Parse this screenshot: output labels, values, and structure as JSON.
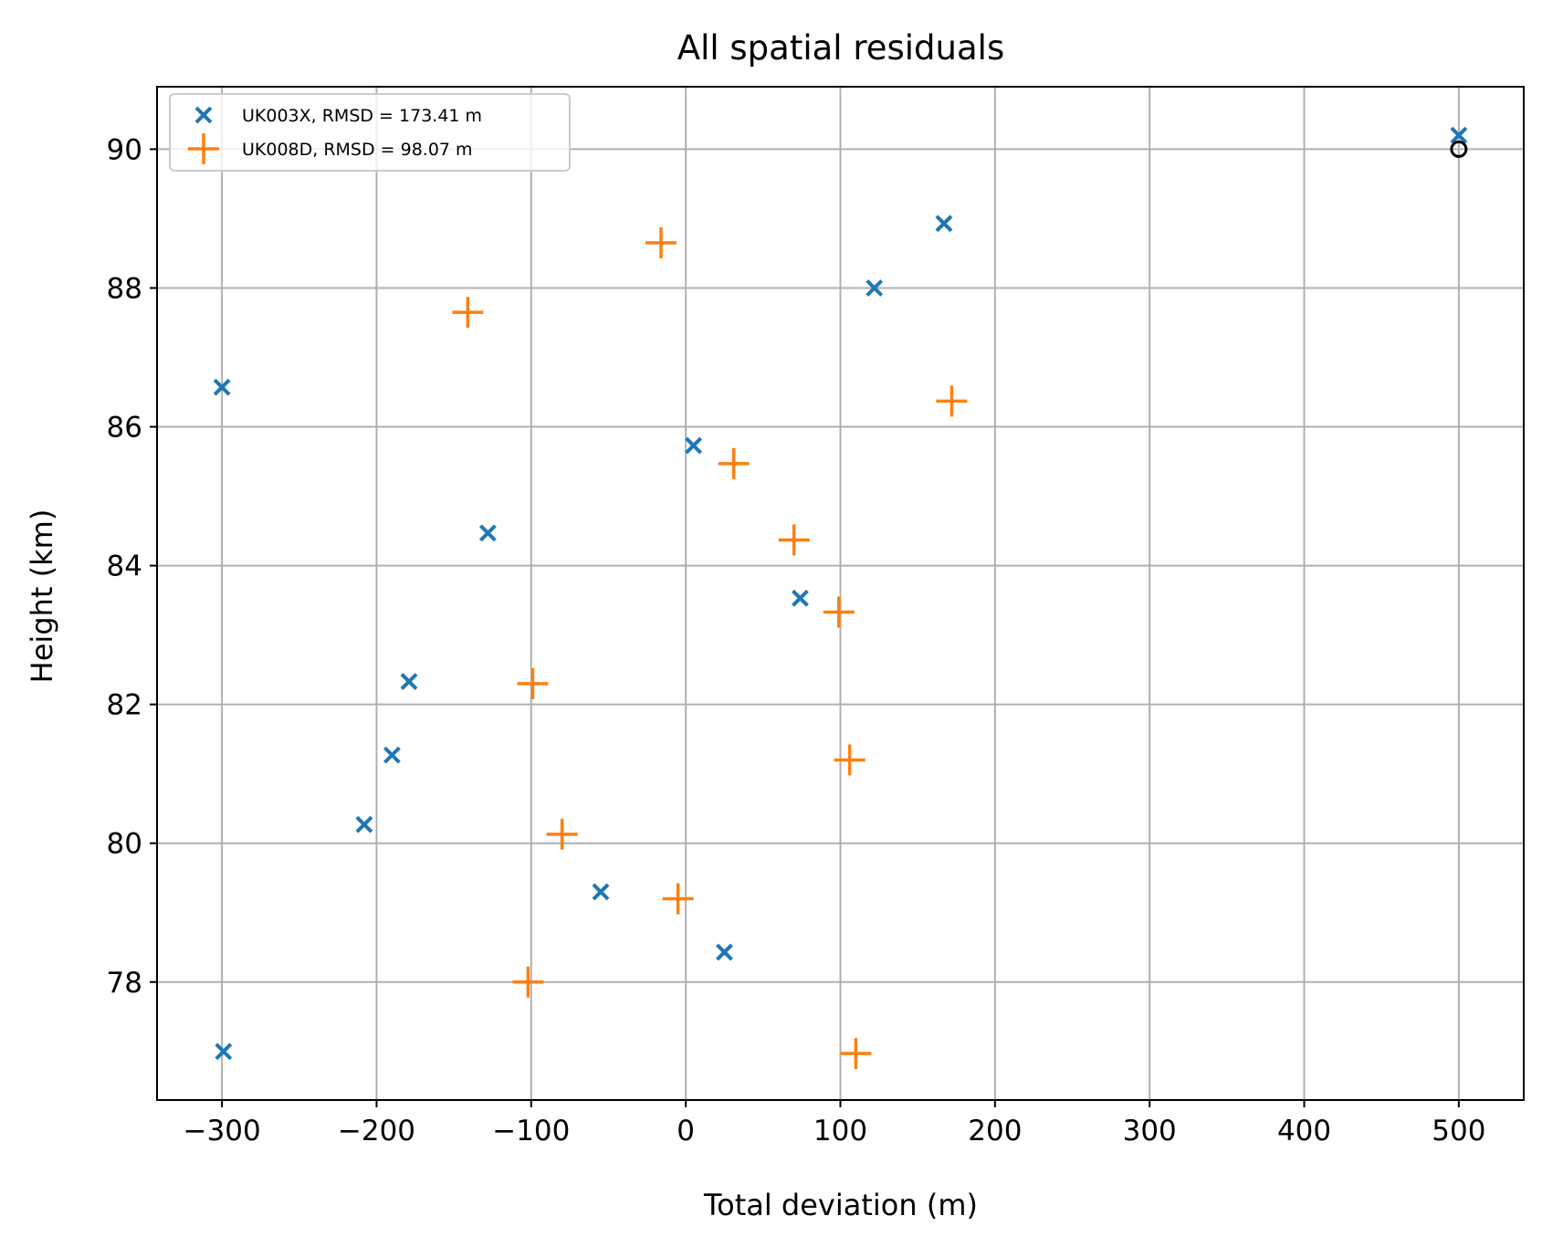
{
  "chart_data": {
    "type": "scatter",
    "title": "All spatial residuals",
    "xlabel": "Total deviation (m)",
    "ylabel": "Height (km)",
    "xlim": [
      -342,
      542
    ],
    "ylim": [
      76.3,
      90.9
    ],
    "xticks": [
      -300,
      -200,
      -100,
      0,
      100,
      200,
      300,
      400,
      500
    ],
    "xtick_labels": [
      "−300",
      "−200",
      "−100",
      "0",
      "100",
      "200",
      "300",
      "400",
      "500"
    ],
    "yticks": [
      78,
      80,
      82,
      84,
      86,
      88,
      90
    ],
    "ytick_labels": [
      "78",
      "80",
      "82",
      "84",
      "86",
      "88",
      "90"
    ],
    "grid": true,
    "legend_position": "top-left",
    "series": [
      {
        "name": "UK003X, RMSD = 173.41 m",
        "marker": "x",
        "color": "#1f77b4",
        "points": [
          {
            "x": 500,
            "y": 90.2
          },
          {
            "x": 167,
            "y": 88.93
          },
          {
            "x": 122,
            "y": 88.0
          },
          {
            "x": -300,
            "y": 86.57
          },
          {
            "x": 5,
            "y": 85.73
          },
          {
            "x": -128,
            "y": 84.47
          },
          {
            "x": 74,
            "y": 83.53
          },
          {
            "x": -179,
            "y": 82.33
          },
          {
            "x": -190,
            "y": 81.27
          },
          {
            "x": -208,
            "y": 80.27
          },
          {
            "x": -55,
            "y": 79.3
          },
          {
            "x": 25,
            "y": 78.43
          },
          {
            "x": -299,
            "y": 77.0
          }
        ]
      },
      {
        "name": "UK008D, RMSD = 98.07 m",
        "marker": "+",
        "color": "#ff7f0e",
        "points": [
          {
            "x": -16,
            "y": 88.65
          },
          {
            "x": -141,
            "y": 87.65
          },
          {
            "x": 172,
            "y": 86.37
          },
          {
            "x": 31,
            "y": 85.47
          },
          {
            "x": 70,
            "y": 84.37
          },
          {
            "x": 99,
            "y": 83.33
          },
          {
            "x": -99,
            "y": 82.3
          },
          {
            "x": 106,
            "y": 81.2
          },
          {
            "x": -80,
            "y": 80.13
          },
          {
            "x": -5,
            "y": 79.2
          },
          {
            "x": -102,
            "y": 78.0
          },
          {
            "x": 110,
            "y": 76.97
          }
        ]
      }
    ],
    "annotations": [
      {
        "marker": "circle-open",
        "color": "#000000",
        "x": 500,
        "y": 90.0
      }
    ]
  }
}
